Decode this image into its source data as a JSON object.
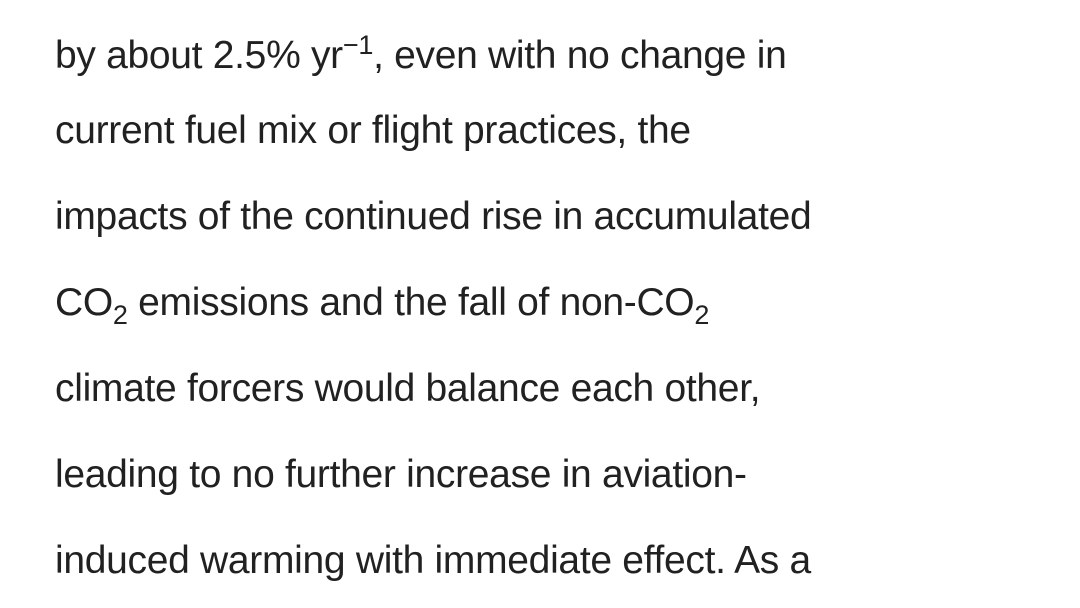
{
  "lines": [
    [
      {
        "text": "by about 2.5% yr"
      },
      {
        "text": "−1",
        "style": "sup"
      },
      {
        "text": ", even with no change in"
      }
    ],
    [
      {
        "text": "current fuel mix or flight practices, the"
      }
    ],
    [
      {
        "text": "impacts of the continued rise in accumulated"
      }
    ],
    [
      {
        "text": "CO"
      },
      {
        "text": "2",
        "style": "sub"
      },
      {
        "text": " emissions and the fall of non-CO"
      },
      {
        "text": "2",
        "style": "sub"
      }
    ],
    [
      {
        "text": "climate forcers would balance each other,"
      }
    ],
    [
      {
        "text": "leading to no further increase in aviation-"
      }
    ],
    [
      {
        "text": "induced warming with immediate effect. As a"
      }
    ]
  ]
}
